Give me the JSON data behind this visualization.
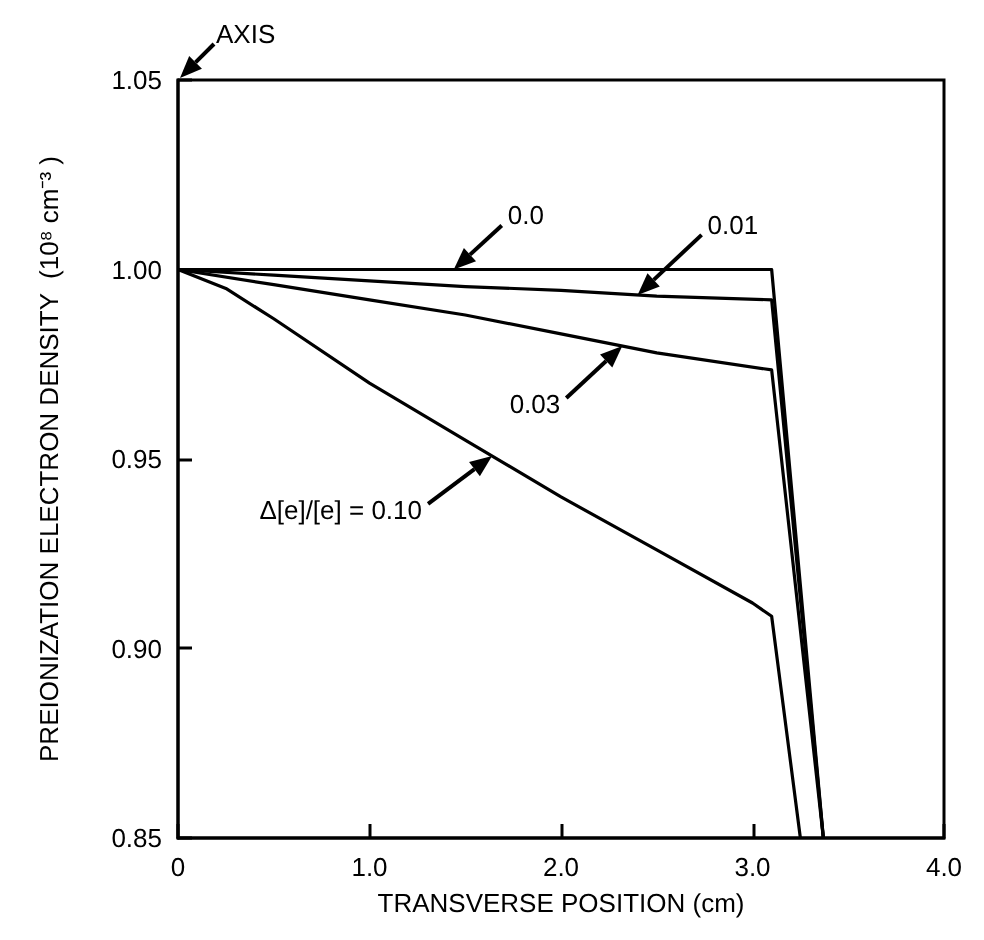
{
  "chart_data": {
    "type": "line",
    "xlabel": "TRANSVERSE POSITION (cm)",
    "ylabel": "PREIONIZATION ELECTRON DENSITY  (10⁸ cm⁻³ )",
    "xlim": [
      0,
      4.0
    ],
    "xticks": [
      0,
      {
        "value": 1,
        "label": "1.0"
      },
      {
        "value": 2,
        "label": "2.0"
      },
      {
        "value": 3,
        "label": "3.0"
      },
      {
        "value": 4,
        "label": "4.0"
      }
    ],
    "ylim": [
      0.85,
      1.05
    ],
    "yticks": [
      {
        "value": 0.85,
        "label": "0.85"
      },
      {
        "value": 0.9,
        "label": "0.90"
      },
      {
        "value": 0.95,
        "label": "0.95"
      },
      {
        "value": 1.0,
        "label": "1.00"
      },
      {
        "value": 1.05,
        "label": "1.05"
      }
    ],
    "series": [
      {
        "name": "0.0",
        "color": "#000000",
        "x": [
          0,
          3.1,
          3.37
        ],
        "values": [
          1.0,
          1.0,
          0.85
        ]
      },
      {
        "name": "0.01",
        "color": "#000000",
        "x": [
          0,
          0.5,
          1.0,
          1.5,
          2.0,
          2.5,
          3.1,
          3.37
        ],
        "values": [
          1.0,
          0.9985,
          0.997,
          0.9955,
          0.9945,
          0.993,
          0.992,
          0.85
        ]
      },
      {
        "name": "0.03",
        "color": "#000000",
        "x": [
          0,
          0.5,
          1.0,
          1.5,
          2.0,
          2.5,
          3.1,
          3.37
        ],
        "values": [
          1.0,
          0.996,
          0.992,
          0.988,
          0.983,
          0.978,
          0.9735,
          0.85
        ]
      },
      {
        "name": "Δ[e]/[e] = 0.10",
        "color": "#000000",
        "x": [
          0,
          0.25,
          0.5,
          1.0,
          1.5,
          2.0,
          2.5,
          3.0,
          3.1,
          3.25
        ],
        "values": [
          1.0,
          0.995,
          0.987,
          0.97,
          0.955,
          0.94,
          0.926,
          0.912,
          0.9085,
          0.85
        ]
      }
    ],
    "annotations": [
      "AXIS"
    ]
  }
}
